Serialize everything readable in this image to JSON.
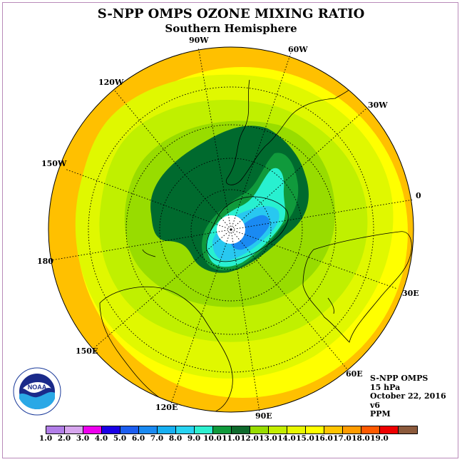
{
  "title": "S-NPP OMPS OZONE MIXING RATIO",
  "subtitle": "Southern Hemisphere",
  "longitude_labels": {
    "lon_90w": "90W",
    "lon_60w": "60W",
    "lon_30w": "30W",
    "lon_0": "0",
    "lon_30e": "30E",
    "lon_60e": "60E",
    "lon_90e": "90E",
    "lon_120e": "120E",
    "lon_150e": "150E",
    "lon_180": "180",
    "lon_150w": "150W",
    "lon_120w": "120W"
  },
  "info": {
    "instrument": "S-NPP OMPS",
    "level": "15 hPa",
    "date": "October 22, 2016",
    "version": "v6",
    "units": "PPM"
  },
  "logo": {
    "text": "NOAA",
    "icon": "noaa-logo-icon"
  },
  "colorbar": {
    "ticks": [
      "1.0",
      "2.0",
      "3.0",
      "4.0",
      "5.0",
      "6.0",
      "7.0",
      "8.0",
      "9.0",
      "10.0",
      "11.0",
      "12.0",
      "13.0",
      "14.0",
      "15.0",
      "16.0",
      "17.0",
      "18.0",
      "19.0"
    ],
    "colors": [
      "#b27ee8",
      "#d7a6ee",
      "#ee00ee",
      "#1a00e6",
      "#1d5ef0",
      "#1a8af2",
      "#17b0f2",
      "#28d4f2",
      "#2ef0d0",
      "#109a3c",
      "#0e6a2c",
      "#98dc00",
      "#c4ee00",
      "#e8f800",
      "#ffff00",
      "#ffc400",
      "#ff9c00",
      "#ff5a00",
      "#ee0000",
      "#8c5a3c"
    ]
  },
  "map_colors": {
    "outer_orange": "#ffc000",
    "yellow": "#ffff00",
    "light_yellow_green": "#e0f800",
    "yellow_green": "#c0f000",
    "green": "#98dc00",
    "dark_green": "#006a2e",
    "medium_green": "#109a3c",
    "cyan": "#28f0d0",
    "light_blue": "#28c8f0",
    "blue": "#1a8af2",
    "pole": "#ffffff"
  }
}
